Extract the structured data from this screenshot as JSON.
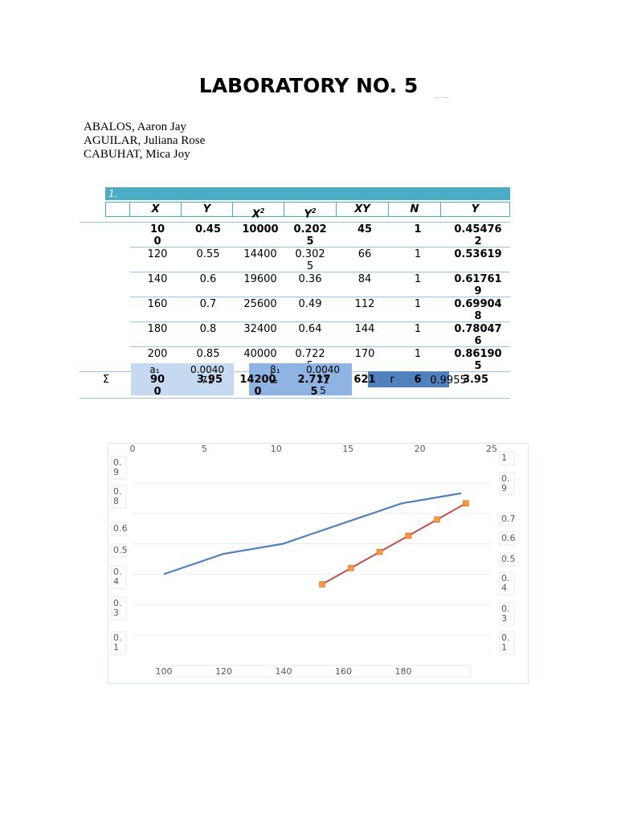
{
  "title": "LABORATORY NO. 5",
  "watermark": "—·—",
  "authors": [
    "ABALOS, Aaron Jay",
    "AGUILAR, Juliana Rose",
    "CABUHAT, Mica Joy"
  ],
  "section_label": "1.",
  "table": {
    "headers": [
      "X",
      "Y",
      "X",
      "Y",
      "XY",
      "N",
      "Y"
    ],
    "header_sup": "2",
    "rows": [
      {
        "x": "10\n0",
        "y": "0.45",
        "x2": "10000",
        "y2": "0.202\n5",
        "xy": "45",
        "n": "1",
        "yhat": "0.45476\n2",
        "bold": true
      },
      {
        "x": "120",
        "y": "0.55",
        "x2": "14400",
        "y2": "0.302\n5",
        "xy": "66",
        "n": "1",
        "yhat": "0.53619",
        "bold": false
      },
      {
        "x": "140",
        "y": "0.6",
        "x2": "19600",
        "y2": "0.36",
        "xy": "84",
        "n": "1",
        "yhat": "0.61761\n9",
        "bold": false
      },
      {
        "x": "160",
        "y": "0.7",
        "x2": "25600",
        "y2": "0.49",
        "xy": "112",
        "n": "1",
        "yhat": "0.69904\n8",
        "bold": false
      },
      {
        "x": "180",
        "y": "0.8",
        "x2": "32400",
        "y2": "0.64",
        "xy": "144",
        "n": "1",
        "yhat": "0.78047\n6",
        "bold": false
      },
      {
        "x": "200",
        "y": "0.85",
        "x2": "40000",
        "y2": "0.722\n5",
        "xy": "170",
        "n": "1",
        "yhat": "0.86190\n5",
        "bold": false
      }
    ],
    "sum": {
      "symbol": "Σ",
      "x": "90\n0",
      "y": "3.95",
      "x2": "14200\n0",
      "y2": "2.717\n5",
      "xy": "621",
      "n": "6",
      "yhat": "3.95"
    },
    "a1_label": "a₁",
    "a1_value": "0.0040\n71",
    "b1_label": "β₁",
    "b1_value": "0.0040\n71\n5",
    "underscore": "=",
    "r_label": "r",
    "r_value": "0.9955"
  },
  "chart_data": {
    "type": "line",
    "top_axis_ticks": [
      "0",
      "5",
      "10",
      "15",
      "20",
      "25"
    ],
    "bottom_axis_ticks": [
      "100",
      "120",
      "140",
      "160",
      "180"
    ],
    "left_axis_ticks": [
      "0.\n9",
      "0.\n8",
      "0.6",
      "0.5",
      "0.\n4",
      "0.\n3",
      "0.\n1"
    ],
    "right_axis_ticks": [
      "1",
      "0.\n9",
      "0.7",
      "0.6",
      "0.5",
      "0.\n4",
      "0.\n3",
      "0.\n1"
    ],
    "series": [
      {
        "color": "#4f81bd",
        "x": [
          100,
          120,
          140,
          160,
          180,
          200
        ],
        "y": [
          0.45,
          0.55,
          0.6,
          0.7,
          0.8,
          0.85
        ]
      },
      {
        "color": "#c0504d",
        "marker_color": "#f79646",
        "x": [
          10,
          12,
          14,
          16,
          18,
          20
        ],
        "y": [
          0.4,
          0.48,
          0.56,
          0.64,
          0.72,
          0.8
        ]
      }
    ],
    "bottom_range": [
      90,
      210
    ],
    "top_range": [
      0,
      25
    ],
    "y_range": [
      0.05,
      1.0
    ]
  }
}
